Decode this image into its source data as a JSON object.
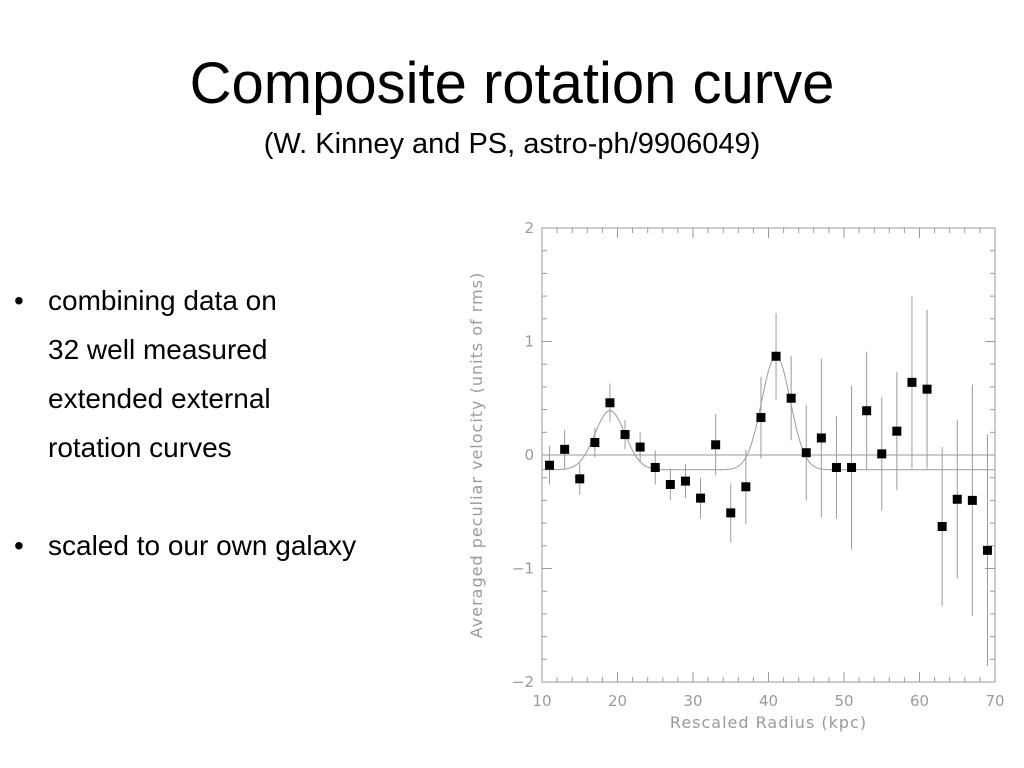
{
  "slide": {
    "title": "Composite rotation curve",
    "subtitle": "(W. Kinney and PS, astro-ph/9906049)",
    "bullets": [
      {
        "lines": [
          "combining data on",
          "32 well measured",
          "extended external",
          "rotation curves"
        ]
      },
      {
        "lines": [
          "scaled to our own galaxy"
        ]
      }
    ]
  },
  "chart_data": {
    "type": "scatter",
    "xlabel": "Rescaled Radius (kpc)",
    "ylabel": "Averaged peculiar velocity (units of rms)",
    "xlim": [
      10,
      70
    ],
    "ylim": [
      -2,
      2
    ],
    "xticks": [
      10,
      20,
      30,
      40,
      50,
      60,
      70
    ],
    "yticks": [
      -2,
      -1,
      0,
      1,
      2
    ],
    "ytick_labels": [
      "−2",
      "−1",
      "0",
      "1",
      "2"
    ],
    "colors": {
      "axis": "#9a9a9a",
      "points": "#000000",
      "errorbars": "#9a9a9a",
      "fit": "#9a9a9a"
    },
    "points": [
      {
        "x": 11,
        "y": -0.09,
        "err": 0.17
      },
      {
        "x": 13,
        "y": 0.05,
        "err": 0.17
      },
      {
        "x": 15,
        "y": -0.21,
        "err": 0.14
      },
      {
        "x": 17,
        "y": 0.11,
        "err": 0.13
      },
      {
        "x": 19,
        "y": 0.46,
        "err": 0.17
      },
      {
        "x": 21,
        "y": 0.18,
        "err": 0.13
      },
      {
        "x": 23,
        "y": 0.07,
        "err": 0.13
      },
      {
        "x": 25,
        "y": -0.11,
        "err": 0.15
      },
      {
        "x": 27,
        "y": -0.26,
        "err": 0.14
      },
      {
        "x": 29,
        "y": -0.23,
        "err": 0.15
      },
      {
        "x": 31,
        "y": -0.38,
        "err": 0.18
      },
      {
        "x": 33,
        "y": 0.09,
        "err": 0.27
      },
      {
        "x": 35,
        "y": -0.51,
        "err": 0.26
      },
      {
        "x": 37,
        "y": -0.28,
        "err": 0.33
      },
      {
        "x": 39,
        "y": 0.33,
        "err": 0.36
      },
      {
        "x": 41,
        "y": 0.87,
        "err": 0.38
      },
      {
        "x": 43,
        "y": 0.5,
        "err": 0.37
      },
      {
        "x": 45,
        "y": 0.02,
        "err": 0.42
      },
      {
        "x": 47,
        "y": 0.15,
        "err": 0.7
      },
      {
        "x": 49,
        "y": -0.11,
        "err": 0.45
      },
      {
        "x": 51,
        "y": -0.11,
        "err": 0.72
      },
      {
        "x": 53,
        "y": 0.39,
        "err": 0.52
      },
      {
        "x": 55,
        "y": 0.01,
        "err": 0.5
      },
      {
        "x": 57,
        "y": 0.21,
        "err": 0.52
      },
      {
        "x": 59,
        "y": 0.64,
        "err": 0.76
      },
      {
        "x": 61,
        "y": 0.58,
        "err": 0.7
      },
      {
        "x": 63,
        "y": -0.63,
        "err": 0.7
      },
      {
        "x": 65,
        "y": -0.39,
        "err": 0.7
      },
      {
        "x": 67,
        "y": -0.4,
        "err": 1.02
      },
      {
        "x": 69,
        "y": -0.84,
        "err": 1.02
      }
    ],
    "fit_curve": {
      "baseline": -0.13,
      "peaks": [
        {
          "center": 19,
          "amplitude": 0.52,
          "width": 2.0
        },
        {
          "center": 41,
          "amplitude": 1.0,
          "width": 1.9
        }
      ]
    }
  }
}
